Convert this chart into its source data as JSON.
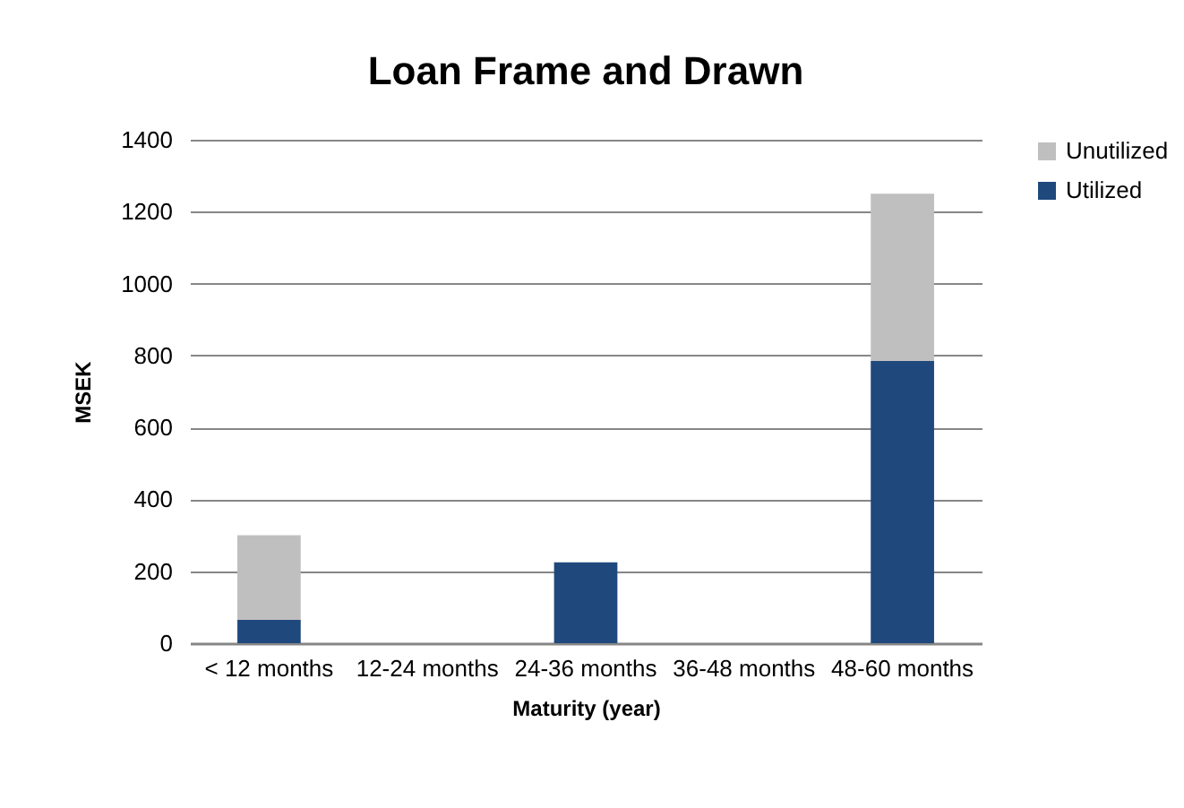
{
  "chart_data": {
    "type": "bar",
    "title": "Loan Frame and Drawn",
    "xlabel": "Maturity (year)",
    "ylabel": "MSEK",
    "categories": [
      "< 12 months",
      "12-24 months",
      "24-36 months",
      "36-48 months",
      "48-60 months"
    ],
    "stacked": true,
    "series": [
      {
        "name": "Utilized",
        "color": "#1f497d",
        "values": [
          65,
          0,
          225,
          0,
          785
        ]
      },
      {
        "name": "Unutilized",
        "color": "#bfbfbf",
        "values": [
          235,
          0,
          0,
          0,
          465
        ]
      }
    ],
    "ylim": [
      0,
      1400
    ],
    "yticks": [
      0,
      200,
      400,
      600,
      800,
      1000,
      1200,
      1400
    ],
    "grid": "y",
    "legend": "right"
  }
}
